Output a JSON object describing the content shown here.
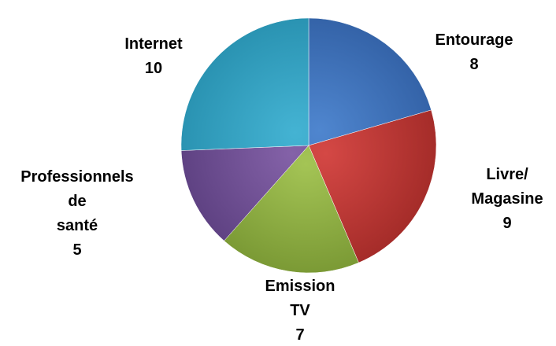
{
  "chart_data": {
    "type": "pie",
    "categories": [
      "Entourage",
      "Livre/ Magasine",
      "Emission TV",
      "Professionnels de santé",
      "Internet"
    ],
    "values": [
      8,
      9,
      7,
      5,
      10
    ],
    "label_lines": [
      [
        "Entourage",
        "8"
      ],
      [
        "Livre/",
        "Magasine",
        "9"
      ],
      [
        "Emission",
        "TV",
        "7"
      ],
      [
        "Professionnels",
        "de",
        "santé",
        "5"
      ],
      [
        "Internet",
        "10"
      ]
    ],
    "colors": [
      [
        "#4f86cf",
        "#3463a8"
      ],
      [
        "#d44845",
        "#a52c29"
      ],
      [
        "#a4c455",
        "#7b9a35"
      ],
      [
        "#8462a8",
        "#5f4283"
      ],
      [
        "#44b3d3",
        "#2a93b2"
      ]
    ],
    "start_angle_deg": 0,
    "direction": "clockwise",
    "legend": "none",
    "title": ""
  }
}
